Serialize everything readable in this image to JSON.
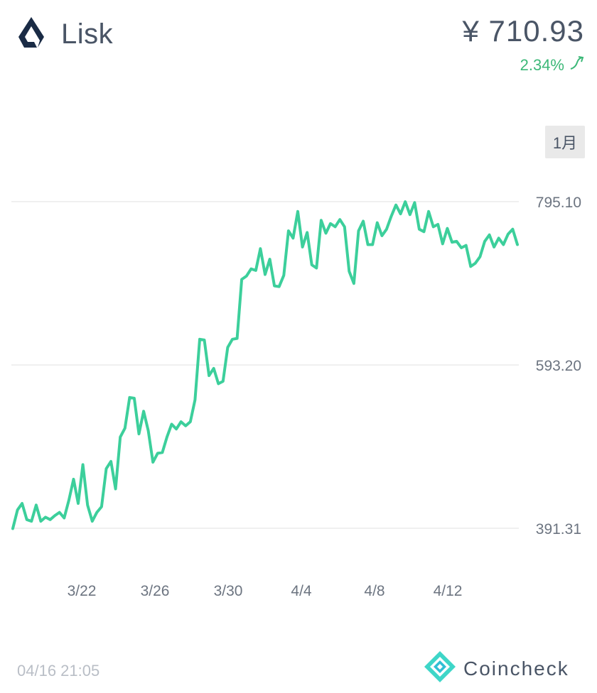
{
  "coin": {
    "name": "Lisk",
    "icon": "lisk-logo-icon"
  },
  "price": {
    "value": "¥ 710.93",
    "change": "2.34%",
    "change_icon": "arrow-up-right-icon",
    "change_color": "#3cb878"
  },
  "period": {
    "selected": "1月"
  },
  "chart_data": {
    "type": "line",
    "color": "#3ccf9b",
    "y_tick_labels": [
      "795.10",
      "593.20",
      "391.31"
    ],
    "y_ticks": [
      795.1,
      593.2,
      391.31
    ],
    "x_tick_labels": [
      "3/22",
      "3/26",
      "3/30",
      "4/4",
      "4/8",
      "4/12"
    ],
    "grid": true,
    "values": [
      391,
      414,
      422,
      402,
      400,
      420,
      400,
      405,
      402,
      407,
      411,
      404,
      426,
      452,
      422,
      470,
      420,
      400,
      411,
      418,
      465,
      474,
      440,
      504,
      515,
      553,
      552,
      508,
      536,
      512,
      473,
      484,
      485,
      504,
      520,
      514,
      523,
      518,
      523,
      550,
      625,
      624,
      580,
      589,
      570,
      573,
      615,
      625,
      626,
      699,
      703,
      712,
      710,
      737,
      705,
      724,
      691,
      690,
      704,
      759,
      750,
      783,
      739,
      757,
      717,
      713,
      772,
      756,
      768,
      764,
      773,
      764,
      709,
      694,
      759,
      771,
      742,
      742,
      769,
      753,
      761,
      777,
      791,
      780,
      795,
      779,
      794,
      761,
      758,
      783,
      764,
      767,
      743,
      762,
      745,
      746,
      738,
      741,
      715,
      719,
      727,
      746,
      754,
      739,
      750,
      742,
      755,
      761,
      742
    ]
  },
  "footer": {
    "timestamp": "04/16 21:05",
    "brand": "Coincheck",
    "brand_icon": "coincheck-logo-icon"
  }
}
